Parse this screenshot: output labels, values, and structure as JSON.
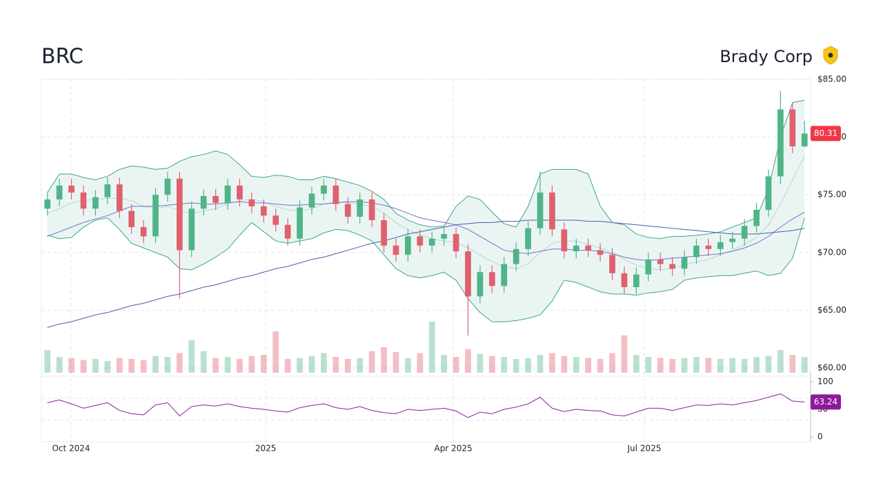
{
  "chart_data": {
    "type": "candlestick",
    "title": "BRC",
    "subtitle": "Brady Corp",
    "xlim": [
      0,
      64
    ],
    "xticks": [
      {
        "value": 2.47,
        "label": "Oct 2024"
      },
      {
        "value": 18.66,
        "label": "2025"
      },
      {
        "value": 34.27,
        "label": "Apr 2025"
      },
      {
        "value": 50.17,
        "label": "Jul 2025"
      }
    ],
    "ylim": [
      60,
      85
    ],
    "yticks": [
      {
        "value": 60,
        "label": "$60.00"
      },
      {
        "value": 65,
        "label": "$65.00"
      },
      {
        "value": 70,
        "label": "$70.00"
      },
      {
        "value": 75,
        "label": "$75.00"
      },
      {
        "value": 80,
        "label": "$80.00"
      },
      {
        "value": 85,
        "label": "$85.00"
      }
    ],
    "grid": true,
    "up_color": "#4fb487",
    "down_color": "#e0606e",
    "last_price_color": "#f23645",
    "candles": {
      "open": [
        73.8,
        74.6,
        75.8,
        75.2,
        73.8,
        74.8,
        75.9,
        73.6,
        72.2,
        71.4,
        75.0,
        76.4,
        70.2,
        73.8,
        74.9,
        74.3,
        75.8,
        74.6,
        74.0,
        73.2,
        72.4,
        71.2,
        73.9,
        75.1,
        75.8,
        74.2,
        73.1,
        74.6,
        72.8,
        70.6,
        69.8,
        71.4,
        70.6,
        71.2,
        71.6,
        70.1,
        66.2,
        68.3,
        67.1,
        69.0,
        70.3,
        72.1,
        75.2,
        72.0,
        70.1,
        70.6,
        70.2,
        69.8,
        68.2,
        67.0,
        68.1,
        69.4,
        69.0,
        68.6,
        69.6,
        70.6,
        70.3,
        70.9,
        71.2,
        72.3,
        73.7,
        76.6,
        82.4,
        79.2
      ],
      "high": [
        75.2,
        76.4,
        76.4,
        75.8,
        75.4,
        76.5,
        76.5,
        74.2,
        72.8,
        75.6,
        77.0,
        77.0,
        74.4,
        75.5,
        75.5,
        76.4,
        76.4,
        75.2,
        74.6,
        73.8,
        73.0,
        74.5,
        75.7,
        76.4,
        76.4,
        74.8,
        75.2,
        75.2,
        73.4,
        71.2,
        72.0,
        72.0,
        71.8,
        72.2,
        72.2,
        70.7,
        68.9,
        68.9,
        69.6,
        70.9,
        72.7,
        77.0,
        75.8,
        72.6,
        71.2,
        71.2,
        70.8,
        70.4,
        68.8,
        68.7,
        70.0,
        70.0,
        69.6,
        70.2,
        71.2,
        71.2,
        71.5,
        71.8,
        72.9,
        74.3,
        77.2,
        84.0,
        83.0,
        81.4
      ],
      "low": [
        73.2,
        74.0,
        74.6,
        73.2,
        73.2,
        74.2,
        73.0,
        71.6,
        70.8,
        70.8,
        74.4,
        66.0,
        69.6,
        73.2,
        73.7,
        73.7,
        74.0,
        73.4,
        72.6,
        71.8,
        70.6,
        70.6,
        73.3,
        74.5,
        73.6,
        72.5,
        72.5,
        72.2,
        70.0,
        69.2,
        69.2,
        70.0,
        70.0,
        70.6,
        69.5,
        62.8,
        65.6,
        66.5,
        66.5,
        68.4,
        69.7,
        71.5,
        71.4,
        69.5,
        69.5,
        69.6,
        69.2,
        67.6,
        66.4,
        66.4,
        67.5,
        68.4,
        68.0,
        68.0,
        69.0,
        69.7,
        69.7,
        70.3,
        70.6,
        71.7,
        73.1,
        75.9,
        78.6,
        79.1
      ],
      "close": [
        74.6,
        75.8,
        75.2,
        73.8,
        74.8,
        75.9,
        73.6,
        72.2,
        71.4,
        75.0,
        76.4,
        70.2,
        73.8,
        74.9,
        74.3,
        75.8,
        74.6,
        74.0,
        73.2,
        72.4,
        71.2,
        73.9,
        75.1,
        75.8,
        74.2,
        73.1,
        74.6,
        72.8,
        70.6,
        69.8,
        71.4,
        70.6,
        71.2,
        71.6,
        70.1,
        66.2,
        68.3,
        67.1,
        69.0,
        70.3,
        72.1,
        75.2,
        72.0,
        70.1,
        70.6,
        70.2,
        69.8,
        68.2,
        67.0,
        68.1,
        69.4,
        69.0,
        68.6,
        69.6,
        70.6,
        70.3,
        70.9,
        71.2,
        72.3,
        73.7,
        76.6,
        82.4,
        79.2,
        80.31
      ],
      "volume": [
        230,
        160,
        150,
        130,
        140,
        120,
        150,
        140,
        130,
        170,
        160,
        200,
        330,
        220,
        150,
        160,
        140,
        170,
        180,
        420,
        140,
        150,
        170,
        200,
        160,
        140,
        150,
        220,
        260,
        210,
        150,
        200,
        520,
        180,
        160,
        240,
        190,
        170,
        160,
        140,
        150,
        180,
        200,
        170,
        160,
        150,
        140,
        200,
        380,
        180,
        160,
        150,
        140,
        150,
        160,
        150,
        140,
        150,
        140,
        160,
        170,
        230,
        180,
        160
      ]
    },
    "volume_ylim": [
      0,
      560
    ],
    "bands": {
      "color": "#3aa58a",
      "fill": "#e8f4f2",
      "upper": [
        75.2,
        76.8,
        76.8,
        76.5,
        76.3,
        76.6,
        77.2,
        77.5,
        77.4,
        77.2,
        77.3,
        77.9,
        78.3,
        78.5,
        78.8,
        78.5,
        77.6,
        76.6,
        76.5,
        76.7,
        76.6,
        76.3,
        76.3,
        76.6,
        76.4,
        76.1,
        75.8,
        75.3,
        74.6,
        73.4,
        72.8,
        72.4,
        72.2,
        72.3,
        74.0,
        74.9,
        74.6,
        73.5,
        72.5,
        72.2,
        74.0,
        76.8,
        77.2,
        77.2,
        77.2,
        76.8,
        74.0,
        72.6,
        72.4,
        71.6,
        71.3,
        71.2,
        71.4,
        71.4,
        71.5,
        71.6,
        71.8,
        72.2,
        72.6,
        73.0,
        75.5,
        80.0,
        83.0,
        83.2
      ],
      "middle": [
        73.4,
        73.8,
        74.3,
        74.5,
        74.6,
        74.7,
        74.7,
        74.5,
        74.0,
        73.8,
        74.0,
        73.6,
        73.4,
        73.6,
        73.8,
        74.2,
        74.5,
        74.6,
        74.4,
        74.0,
        73.7,
        73.6,
        73.8,
        74.2,
        74.4,
        74.3,
        74.2,
        74.0,
        73.4,
        72.6,
        72.0,
        71.5,
        71.2,
        71.0,
        70.9,
        70.4,
        69.8,
        69.2,
        68.8,
        68.6,
        69.0,
        70.0,
        70.8,
        71.0,
        71.0,
        70.7,
        70.4,
        70.0,
        69.4,
        68.9,
        68.6,
        68.5,
        68.6,
        68.9,
        69.2,
        69.4,
        69.8,
        70.2,
        70.7,
        71.3,
        72.4,
        74.2,
        76.3,
        78.4
      ],
      "lower": [
        71.5,
        71.2,
        71.3,
        72.2,
        72.8,
        73.0,
        72.0,
        70.8,
        70.4,
        70.0,
        69.6,
        68.6,
        68.5,
        69.0,
        69.6,
        70.3,
        71.5,
        72.6,
        71.8,
        71.0,
        70.8,
        71.0,
        71.2,
        71.7,
        72.0,
        71.9,
        71.5,
        71.0,
        69.8,
        68.6,
        68.0,
        67.8,
        68.0,
        68.3,
        67.6,
        66.0,
        64.8,
        64.0,
        64.0,
        64.1,
        64.3,
        64.6,
        65.8,
        67.6,
        67.4,
        67.0,
        66.6,
        66.4,
        66.4,
        66.3,
        66.5,
        66.6,
        66.8,
        67.6,
        67.8,
        67.9,
        68.0,
        68.0,
        68.2,
        68.4,
        68.0,
        68.2,
        69.5,
        73.0
      ]
    },
    "averages": [
      {
        "color": "#7b6ad0",
        "values": [
          71.4,
          71.8,
          72.2,
          72.6,
          72.9,
          73.2,
          73.6,
          74.0,
          74.0,
          74.0,
          74.1,
          74.2,
          74.3,
          74.2,
          74.2,
          74.3,
          74.4,
          74.3,
          74.3,
          74.2,
          74.1,
          74.1,
          74.2,
          74.2,
          74.3,
          74.4,
          74.4,
          74.3,
          74.1,
          73.8,
          73.4,
          73.0,
          72.8,
          72.6,
          72.4,
          72.0,
          71.4,
          70.8,
          70.2,
          70.0,
          69.9,
          70.1,
          70.3,
          70.3,
          70.2,
          70.2,
          70.1,
          69.9,
          69.6,
          69.4,
          69.3,
          69.4,
          69.5,
          69.6,
          69.7,
          69.8,
          69.9,
          70.1,
          70.4,
          70.8,
          71.4,
          72.2,
          72.9,
          73.5
        ]
      },
      {
        "color": "#4a5aaa",
        "values": [
          63.5,
          63.8,
          64.0,
          64.3,
          64.6,
          64.8,
          65.1,
          65.4,
          65.6,
          65.9,
          66.2,
          66.4,
          66.7,
          67.0,
          67.2,
          67.5,
          67.8,
          68.0,
          68.3,
          68.6,
          68.8,
          69.1,
          69.4,
          69.6,
          69.9,
          70.2,
          70.5,
          70.8,
          71.0,
          71.3,
          71.6,
          71.8,
          72.0,
          72.2,
          72.4,
          72.5,
          72.6,
          72.6,
          72.7,
          72.7,
          72.8,
          72.8,
          72.8,
          72.8,
          72.8,
          72.7,
          72.7,
          72.6,
          72.5,
          72.4,
          72.3,
          72.2,
          72.1,
          72.0,
          71.9,
          71.8,
          71.7,
          71.6,
          71.6,
          71.6,
          71.7,
          71.8,
          71.9,
          72.1
        ]
      }
    ],
    "rsi": {
      "color": "#8e1a9a",
      "ylim": [
        0,
        100
      ],
      "yticks": [
        0,
        50,
        100
      ],
      "bands": [
        30,
        70
      ],
      "values": [
        62,
        67,
        60,
        52,
        57,
        62,
        48,
        42,
        40,
        58,
        62,
        38,
        55,
        58,
        56,
        60,
        55,
        52,
        50,
        47,
        45,
        53,
        57,
        60,
        53,
        50,
        55,
        48,
        44,
        42,
        50,
        48,
        50,
        52,
        47,
        35,
        45,
        42,
        50,
        54,
        60,
        72,
        52,
        46,
        50,
        48,
        47,
        40,
        38,
        45,
        52,
        52,
        48,
        53,
        58,
        57,
        60,
        58,
        62,
        66,
        72,
        78,
        65,
        63.24
      ]
    }
  }
}
